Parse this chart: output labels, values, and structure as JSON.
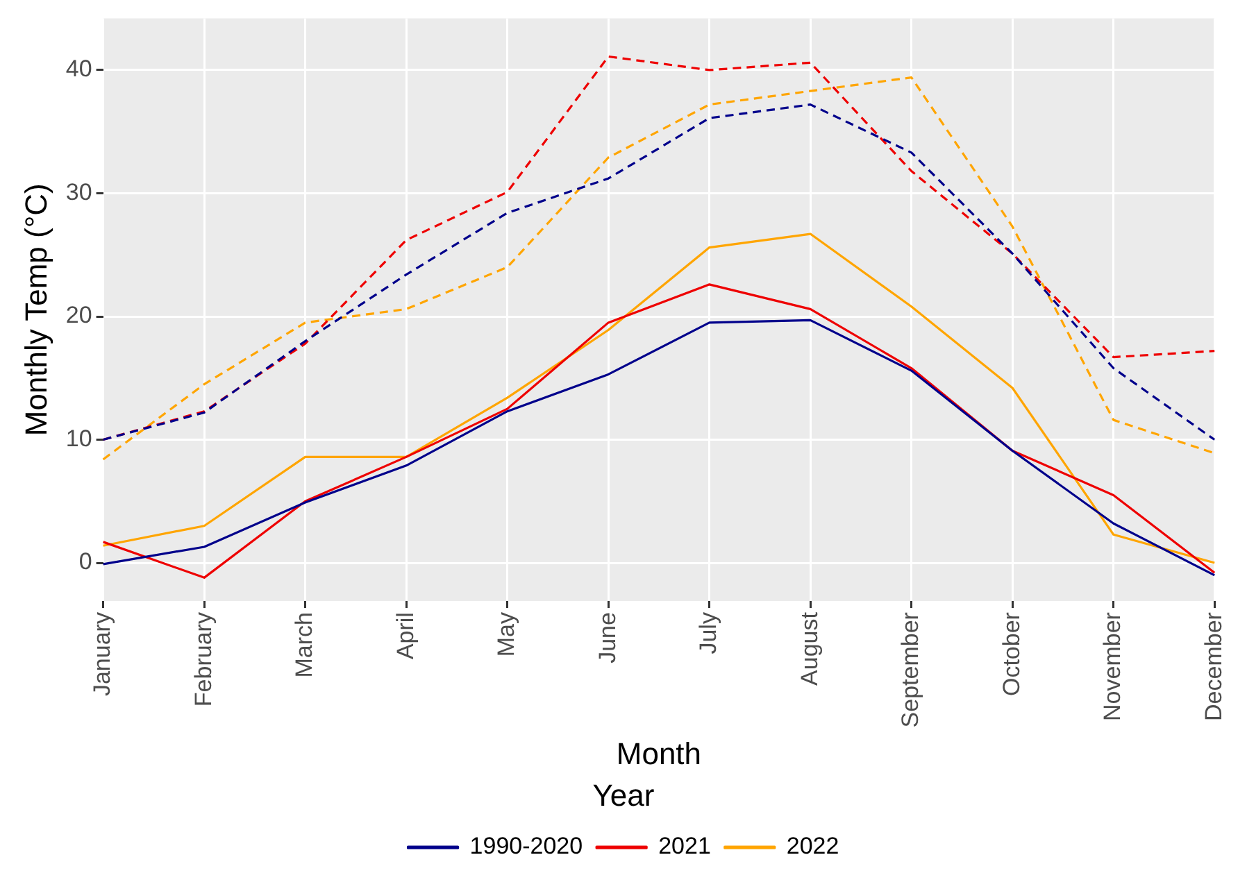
{
  "chart_data": {
    "type": "line",
    "xlabel": "Month",
    "ylabel": "Monthly Temp (°C)",
    "legend_title": "Year",
    "categories": [
      "January",
      "February",
      "March",
      "April",
      "May",
      "June",
      "July",
      "August",
      "September",
      "October",
      "November",
      "December"
    ],
    "series": [
      {
        "name": "1990-2020",
        "color": "#00008b",
        "line_style": "solid",
        "values": [
          -0.1,
          1.3,
          4.9,
          7.9,
          12.3,
          15.3,
          19.5,
          19.7,
          15.6,
          9.1,
          3.2,
          -1.0
        ]
      },
      {
        "name": "2021",
        "color": "#ee0000",
        "line_style": "solid",
        "values": [
          1.7,
          -1.2,
          5.0,
          8.6,
          12.5,
          19.5,
          22.6,
          20.6,
          15.8,
          9.1,
          5.5,
          -0.8
        ]
      },
      {
        "name": "2022",
        "color": "#ffa500",
        "line_style": "solid",
        "values": [
          1.4,
          3.0,
          8.6,
          8.6,
          13.4,
          18.9,
          25.6,
          26.7,
          20.8,
          14.2,
          2.3,
          0
        ]
      },
      {
        "color": "#00008b",
        "line_style": "dashed",
        "values": [
          10.0,
          12.2,
          18.0,
          23.4,
          28.4,
          31.2,
          36.1,
          37.2,
          33.3,
          25.1,
          15.8,
          10.0
        ]
      },
      {
        "color": "#ee0000",
        "line_style": "dashed",
        "values": [
          10.0,
          12.3,
          17.8,
          26.2,
          30.1,
          41.1,
          40.0,
          40.6,
          31.8,
          25.1,
          16.7,
          17.2
        ]
      },
      {
        "color": "#ffa500",
        "line_style": "dashed",
        "values": [
          8.4,
          14.5,
          19.5,
          20.6,
          24.0,
          32.9,
          37.2,
          38.3,
          39.4,
          27.3,
          11.6,
          8.9
        ]
      }
    ],
    "ylim": [
      -3.1,
      44.2
    ],
    "yticks": [
      0,
      10,
      20,
      30,
      40
    ],
    "grid": true,
    "legend": "bottom",
    "marker": "none"
  }
}
